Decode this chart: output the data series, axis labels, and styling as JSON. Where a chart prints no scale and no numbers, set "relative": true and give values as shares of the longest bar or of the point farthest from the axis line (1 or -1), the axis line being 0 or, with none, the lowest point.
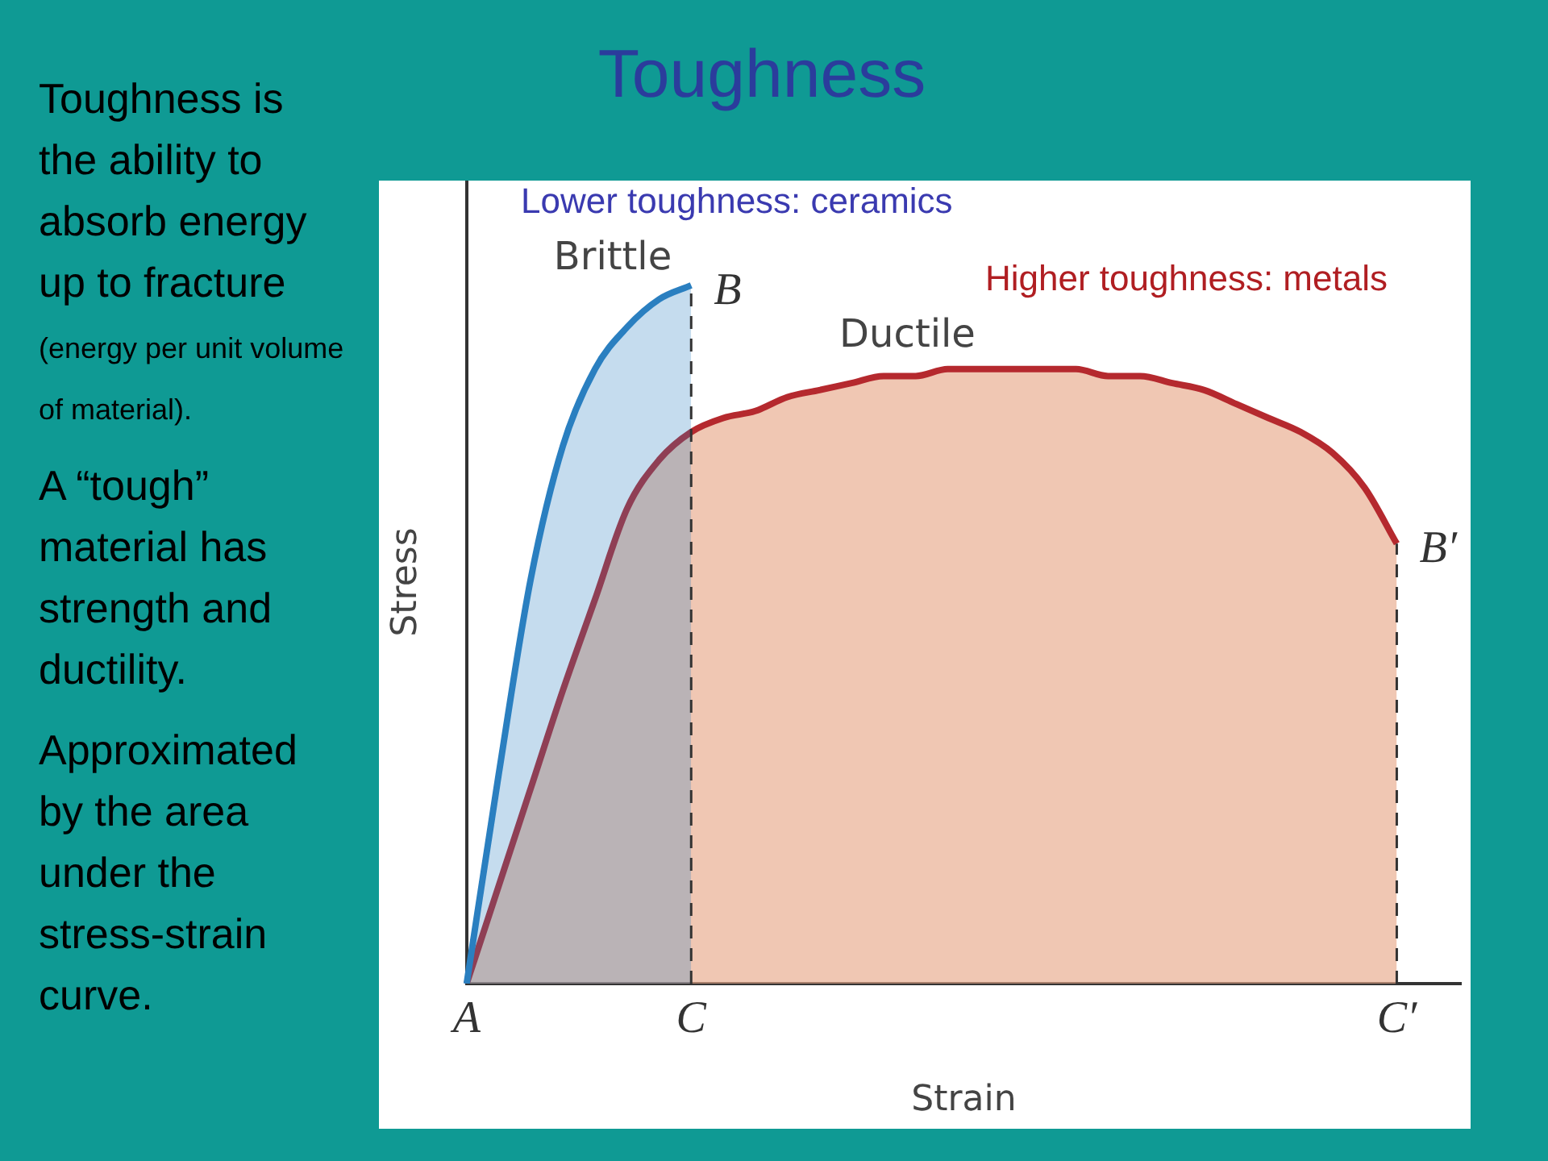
{
  "chart_data": {
    "type": "area",
    "title": "Toughness",
    "xlabel": "Strain",
    "ylabel": "Stress",
    "relative": true,
    "legend": false,
    "grid": false,
    "marker": "none",
    "line_style": "solid",
    "categories": [
      "A",
      null,
      null,
      null,
      null,
      null,
      null,
      "C",
      null,
      null,
      null,
      null,
      null,
      null,
      null,
      null,
      null,
      null,
      null,
      null,
      null,
      null,
      null,
      null,
      null,
      null,
      null,
      null,
      null,
      "C′",
      null,
      null
    ],
    "series": [
      {
        "name": "Brittle",
        "color": "#2a7fc0",
        "values": [
          0,
          0.3,
          0.58,
          0.77,
          0.88,
          0.94,
          0.98,
          1,
          null,
          null,
          null,
          null,
          null,
          null,
          null,
          null,
          null,
          null,
          null,
          null,
          null,
          null,
          null,
          null,
          null,
          null,
          null,
          null,
          null,
          null,
          null,
          null
        ]
      },
      {
        "name": "Ductile",
        "color": "#b5292e",
        "values": [
          0,
          0.14,
          0.28,
          0.42,
          0.55,
          0.68,
          0.75,
          0.79,
          0.81,
          0.82,
          0.84,
          0.85,
          0.86,
          0.87,
          0.87,
          0.88,
          0.88,
          0.88,
          0.88,
          0.88,
          0.87,
          0.87,
          0.86,
          0.85,
          0.83,
          0.81,
          0.79,
          0.76,
          0.71,
          0.63,
          null,
          null
        ]
      }
    ],
    "ref_lines": [
      {
        "axis": "x",
        "value": "C",
        "line_style": "dashed",
        "color": "#333333"
      },
      {
        "axis": "x",
        "value": "C′",
        "line_style": "dashed",
        "color": "#333333"
      }
    ],
    "annotations": [
      "Toughness is the ability to absorb energy up to fracture",
      "(energy per unit volume of material).",
      "A “tough” material has strength and ductility.",
      "Approximated by the area under the stress-strain curve.",
      "Lower toughness: ceramics",
      "Higher toughness: metals",
      {
        "text": "B",
        "x": "C",
        "y": 1
      },
      {
        "text": "B′",
        "x": "C′",
        "y": 0.63
      }
    ]
  }
}
